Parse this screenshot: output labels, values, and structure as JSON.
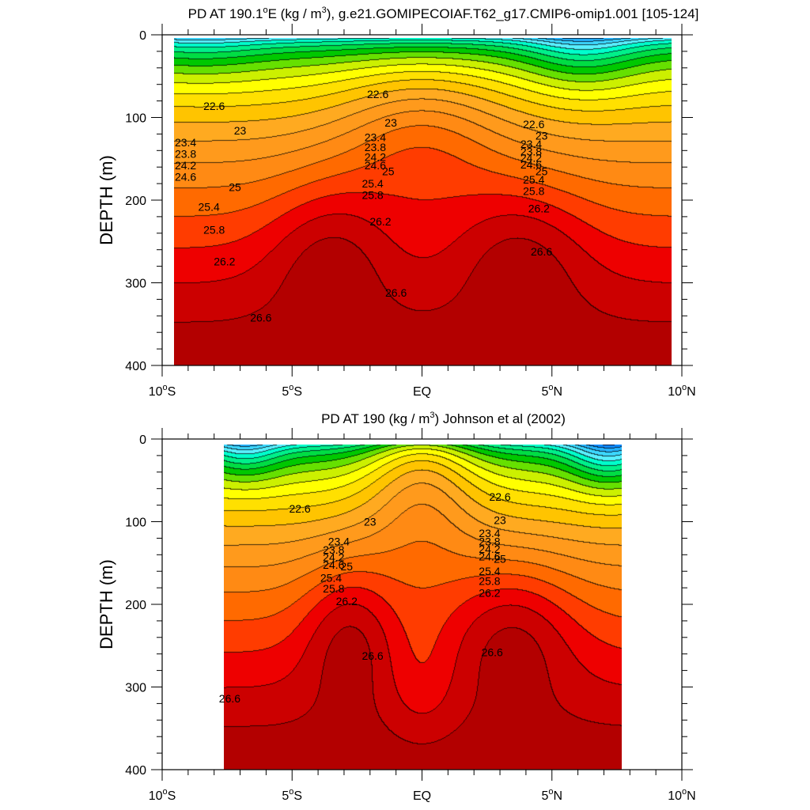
{
  "chart_data": [
    {
      "type": "heatmap",
      "title_prefix": "PD AT 190.1",
      "title_deg": "o",
      "title_mid": "E (kg / m",
      "title_sup": "3",
      "title_suffix": "), g.e21.GOMIPECOIAF.T62_g17.CMIP6-omip1.001 [105-124]",
      "ylabel": "DEPTH (m)",
      "xlim": [
        -10,
        10
      ],
      "ylim": [
        0,
        400
      ],
      "xticks": [
        {
          "value": -10,
          "label": "10",
          "deg": "o",
          "suffix": "S"
        },
        {
          "value": -5,
          "label": "5",
          "deg": "o",
          "suffix": "S"
        },
        {
          "value": 0,
          "label": "EQ",
          "deg": "",
          "suffix": ""
        },
        {
          "value": 5,
          "label": "5",
          "deg": "o",
          "suffix": "N"
        },
        {
          "value": 10,
          "label": "10",
          "deg": "o",
          "suffix": "N"
        }
      ],
      "yticks": [
        0,
        100,
        200,
        300,
        400
      ],
      "data_x_range": [
        -10,
        10
      ],
      "contour_levels": [
        22.4,
        22.6,
        22.8,
        23.0,
        23.2,
        23.4,
        23.6,
        23.8,
        24.0,
        24.2,
        24.4,
        24.6,
        24.8,
        25.0,
        25.2,
        25.4,
        25.6,
        25.8,
        26.0,
        26.2,
        26.4,
        26.6,
        26.8
      ],
      "contour_labels": [
        {
          "text": "22.6",
          "x": -8.0,
          "depth": 86
        },
        {
          "text": "23",
          "x": -7.0,
          "depth": 116
        },
        {
          "text": "23.4",
          "x": -9.1,
          "depth": 130
        },
        {
          "text": "23.8",
          "x": -9.1,
          "depth": 144
        },
        {
          "text": "24.2",
          "x": -9.1,
          "depth": 158
        },
        {
          "text": "24.6",
          "x": -9.1,
          "depth": 172
        },
        {
          "text": "25",
          "x": -7.2,
          "depth": 184
        },
        {
          "text": "25.4",
          "x": -8.2,
          "depth": 208
        },
        {
          "text": "25.8",
          "x": -8.0,
          "depth": 236
        },
        {
          "text": "26.2",
          "x": -7.6,
          "depth": 274
        },
        {
          "text": "26.6",
          "x": -6.2,
          "depth": 342
        },
        {
          "text": "22.6",
          "x": -1.7,
          "depth": 72
        },
        {
          "text": "23",
          "x": -1.2,
          "depth": 106
        },
        {
          "text": "23.4",
          "x": -1.8,
          "depth": 124
        },
        {
          "text": "23.8",
          "x": -1.8,
          "depth": 136
        },
        {
          "text": "24.2",
          "x": -1.8,
          "depth": 148
        },
        {
          "text": "24.6",
          "x": -1.8,
          "depth": 158
        },
        {
          "text": "25",
          "x": -1.3,
          "depth": 165
        },
        {
          "text": "25.4",
          "x": -1.9,
          "depth": 180
        },
        {
          "text": "25.8",
          "x": -1.9,
          "depth": 194
        },
        {
          "text": "26.2",
          "x": -1.6,
          "depth": 226
        },
        {
          "text": "26.6",
          "x": -1.0,
          "depth": 312
        },
        {
          "text": "22.6",
          "x": 4.3,
          "depth": 108
        },
        {
          "text": "23",
          "x": 4.6,
          "depth": 122
        },
        {
          "text": "23.4",
          "x": 4.2,
          "depth": 132
        },
        {
          "text": "23.8",
          "x": 4.2,
          "depth": 141
        },
        {
          "text": "24.2",
          "x": 4.2,
          "depth": 149
        },
        {
          "text": "24.6",
          "x": 4.2,
          "depth": 157
        },
        {
          "text": "25",
          "x": 4.6,
          "depth": 165
        },
        {
          "text": "25.4",
          "x": 4.3,
          "depth": 175
        },
        {
          "text": "25.8",
          "x": 4.3,
          "depth": 189
        },
        {
          "text": "26.2",
          "x": 4.5,
          "depth": 210
        },
        {
          "text": "26.6",
          "x": 4.6,
          "depth": 262
        }
      ]
    },
    {
      "type": "heatmap",
      "title_prefix": "PD AT 190 (kg / m",
      "title_deg": "",
      "title_mid": "",
      "title_sup": "3",
      "title_suffix": ") Johnson et al (2002)",
      "ylabel": "DEPTH (m)",
      "xlim": [
        -10,
        10
      ],
      "ylim": [
        0,
        400
      ],
      "xticks": [
        {
          "value": -10,
          "label": "10",
          "deg": "o",
          "suffix": "S"
        },
        {
          "value": -5,
          "label": "5",
          "deg": "o",
          "suffix": "S"
        },
        {
          "value": 0,
          "label": "EQ",
          "deg": "",
          "suffix": ""
        },
        {
          "value": 5,
          "label": "5",
          "deg": "o",
          "suffix": "N"
        },
        {
          "value": 10,
          "label": "10",
          "deg": "o",
          "suffix": "N"
        }
      ],
      "yticks": [
        0,
        100,
        200,
        300,
        400
      ],
      "data_x_range": [
        -8,
        8
      ],
      "contour_levels": [
        22.4,
        22.6,
        22.8,
        23.0,
        23.2,
        23.4,
        23.6,
        23.8,
        24.0,
        24.2,
        24.4,
        24.6,
        24.8,
        25.0,
        25.2,
        25.4,
        25.6,
        25.8,
        26.0,
        26.2,
        26.4,
        26.6,
        26.8
      ],
      "contour_labels": [
        {
          "text": "22.6",
          "x": -4.7,
          "depth": 84
        },
        {
          "text": "23",
          "x": -2.0,
          "depth": 100
        },
        {
          "text": "23.4",
          "x": -3.2,
          "depth": 124
        },
        {
          "text": "23.8",
          "x": -3.4,
          "depth": 134
        },
        {
          "text": "24.2",
          "x": -3.4,
          "depth": 143
        },
        {
          "text": "24.6",
          "x": -3.4,
          "depth": 152
        },
        {
          "text": "25",
          "x": -2.9,
          "depth": 154
        },
        {
          "text": "25.4",
          "x": -3.5,
          "depth": 168
        },
        {
          "text": "25.8",
          "x": -3.4,
          "depth": 181
        },
        {
          "text": "26.2",
          "x": -2.9,
          "depth": 196
        },
        {
          "text": "26.6",
          "x": -1.9,
          "depth": 262
        },
        {
          "text": "26.6",
          "x": -7.4,
          "depth": 314
        },
        {
          "text": "22.6",
          "x": 3.0,
          "depth": 70
        },
        {
          "text": "23",
          "x": 3.0,
          "depth": 98
        },
        {
          "text": "23.4",
          "x": 2.6,
          "depth": 114
        },
        {
          "text": "23.8",
          "x": 2.6,
          "depth": 124
        },
        {
          "text": "24.2",
          "x": 2.6,
          "depth": 133
        },
        {
          "text": "24.6",
          "x": 2.6,
          "depth": 142
        },
        {
          "text": "25",
          "x": 3.0,
          "depth": 145
        },
        {
          "text": "25.4",
          "x": 2.6,
          "depth": 160
        },
        {
          "text": "25.8",
          "x": 2.6,
          "depth": 172
        },
        {
          "text": "26.2",
          "x": 2.6,
          "depth": 186
        },
        {
          "text": "26.6",
          "x": 2.7,
          "depth": 258
        }
      ]
    }
  ],
  "colormap": [
    "#5a00d6",
    "#0000f0",
    "#0b55ff",
    "#0f8cff",
    "#26b4ff",
    "#3cd8ff",
    "#58f0ff",
    "#00ffcc",
    "#00f08a",
    "#00dd44",
    "#00c800",
    "#66e000",
    "#ccf000",
    "#ffff00",
    "#ffe000",
    "#ffc400",
    "#ffaa20",
    "#ff9a1c",
    "#ff8a14",
    "#ff6a00",
    "#ff3c00",
    "#ee0000",
    "#cc0000",
    "#b30000"
  ],
  "colormap_low": "#c000d8"
}
